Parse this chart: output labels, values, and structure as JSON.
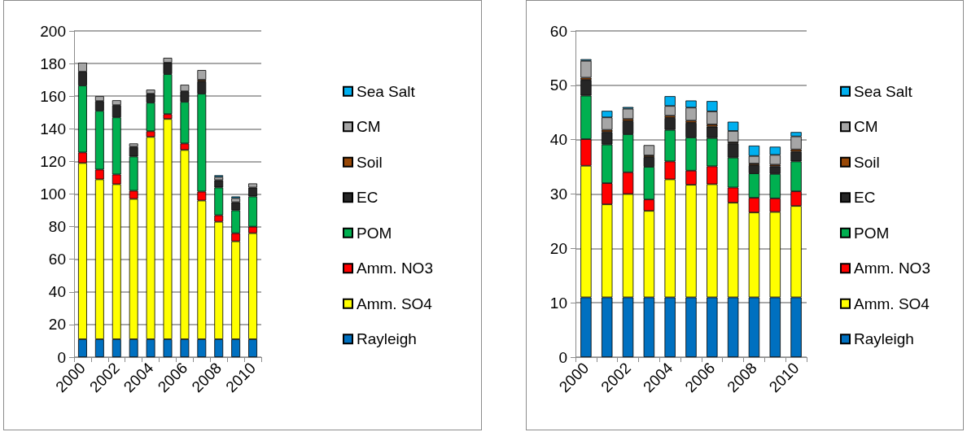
{
  "chart_data": [
    {
      "type": "bar",
      "stacked": true,
      "categories": [
        "2000",
        null,
        "2002",
        null,
        "2004",
        null,
        "2006",
        null,
        "2008",
        null,
        "2010"
      ],
      "ylim": [
        0,
        200
      ],
      "yticks": [
        0,
        20,
        40,
        60,
        80,
        100,
        120,
        140,
        160,
        180,
        200
      ],
      "grid": "y",
      "legend": "right",
      "series": [
        {
          "name": "Rayleigh",
          "color": "#0070c0",
          "values": [
            11,
            11,
            11,
            11,
            11,
            11,
            11,
            11,
            11,
            11,
            11
          ]
        },
        {
          "name": "Amm. SO4",
          "color": "#ffff00",
          "values": [
            108,
            98,
            95,
            86,
            124,
            135,
            116,
            85,
            72,
            60,
            65
          ]
        },
        {
          "name": "Amm. NO3",
          "color": "#ff0000",
          "values": [
            6.5,
            6,
            6,
            5,
            3.5,
            3,
            4,
            5.5,
            4,
            5,
            4
          ]
        },
        {
          "name": "POM",
          "color": "#00b050",
          "values": [
            41,
            36,
            35,
            21,
            17.5,
            24.5,
            25.5,
            60,
            17,
            14,
            18.5
          ]
        },
        {
          "name": "EC",
          "color": "#262626",
          "values": [
            8.5,
            6,
            7.5,
            6,
            5.5,
            7,
            6.5,
            7.5,
            4.5,
            5,
            5.5
          ]
        },
        {
          "name": "Soil",
          "color": "#984807",
          "values": [
            null,
            null,
            null,
            null,
            null,
            null,
            null,
            1,
            null,
            null,
            null
          ]
        },
        {
          "name": "CM",
          "color": "#a6a6a6",
          "values": [
            5.5,
            3,
            3,
            2,
            2.5,
            3,
            4,
            6,
            2,
            2.5,
            2.5
          ]
        },
        {
          "name": "Sea Salt",
          "color": "#00b0f0",
          "values": [
            null,
            null,
            null,
            null,
            null,
            null,
            null,
            null,
            1,
            1,
            null
          ]
        }
      ]
    },
    {
      "type": "bar",
      "stacked": true,
      "categories": [
        "2000",
        null,
        "2002",
        null,
        "2004",
        null,
        "2006",
        null,
        "2008",
        null,
        "2010"
      ],
      "ylim": [
        0,
        60
      ],
      "yticks": [
        0,
        10,
        20,
        30,
        40,
        50,
        60
      ],
      "grid": "y",
      "legend": "right",
      "series": [
        {
          "name": "Rayleigh",
          "color": "#0070c0",
          "values": [
            11,
            11,
            11,
            11,
            11,
            11,
            11,
            11,
            11,
            11,
            11
          ]
        },
        {
          "name": "Amm. SO4",
          "color": "#ffff00",
          "values": [
            24.2,
            17.1,
            19,
            15.9,
            21.7,
            20.7,
            20.8,
            17.4,
            15.6,
            15.7,
            16.8
          ]
        },
        {
          "name": "Amm. NO3",
          "color": "#ff0000",
          "values": [
            4.9,
            3.9,
            4,
            2.1,
            3.3,
            2.6,
            3.3,
            2.8,
            2.7,
            2.5,
            2.7
          ]
        },
        {
          "name": "POM",
          "color": "#00b050",
          "values": [
            8,
            7.1,
            7,
            6,
            5.8,
            6.1,
            5.2,
            5.5,
            4.5,
            4.5,
            5.5
          ]
        },
        {
          "name": "EC",
          "color": "#262626",
          "values": [
            2.9,
            2.3,
            2.4,
            1.8,
            2.2,
            2.7,
            2.1,
            2.6,
            1.5,
            1.4,
            1.8
          ]
        },
        {
          "name": "Soil",
          "color": "#984807",
          "values": [
            0.4,
            0.4,
            0.4,
            0.3,
            0.4,
            0.4,
            0.4,
            0.2,
            0.3,
            0.3,
            0.4
          ]
        },
        {
          "name": "CM",
          "color": "#a6a6a6",
          "values": [
            3.1,
            2.3,
            1.9,
            1.9,
            1.8,
            2.4,
            2.4,
            2.1,
            1.4,
            1.8,
            2.4
          ]
        },
        {
          "name": "Sea Salt",
          "color": "#00b0f0",
          "values": [
            0.3,
            1.2,
            0.3,
            null,
            1.8,
            1.3,
            1.9,
            1.7,
            1.9,
            1.5,
            0.8
          ]
        }
      ]
    }
  ]
}
